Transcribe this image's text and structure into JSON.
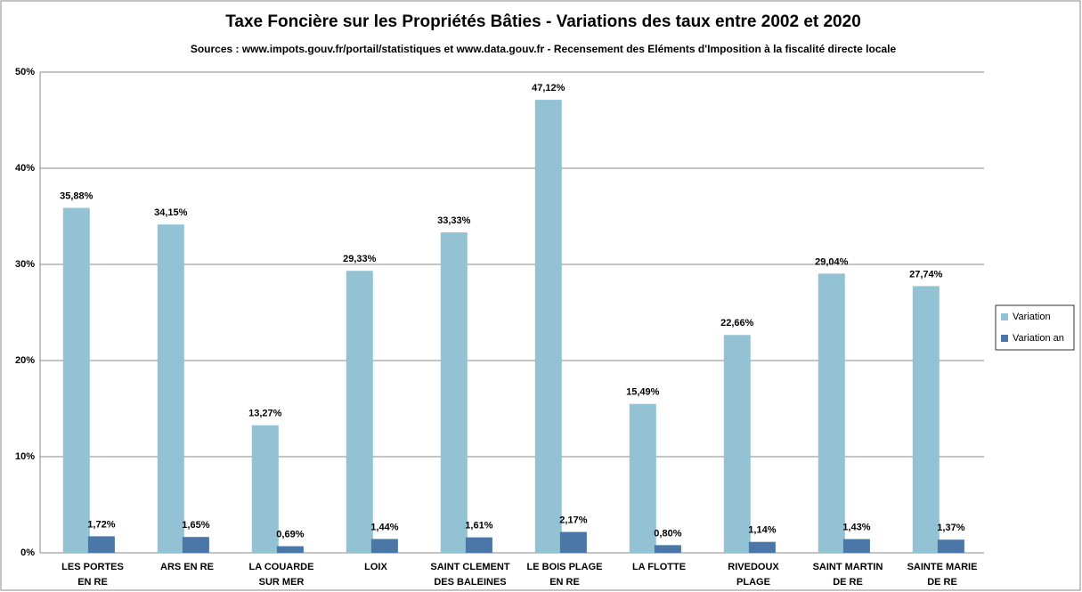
{
  "chart_data": {
    "type": "bar",
    "title": "Taxe Foncière sur les Propriétés Bâties - Variations des taux entre 2002 et 2020",
    "subtitle": "Sources : www.impots.gouv.fr/portail/statistiques et www.data.gouv.fr - Recensement des Eléments d'Imposition à la fiscalité directe locale",
    "categories": [
      "LES PORTES\nEN RE",
      "ARS EN RE",
      "LA COUARDE\nSUR MER",
      "LOIX",
      "SAINT CLEMENT\nDES BALEINES",
      "LE BOIS PLAGE\nEN RE",
      "LA FLOTTE",
      "RIVEDOUX\nPLAGE",
      "SAINT MARTIN\nDE RE",
      "SAINTE MARIE\nDE RE"
    ],
    "series": [
      {
        "name": "Variation",
        "color": "#92c2d4",
        "values": [
          35.88,
          34.15,
          13.27,
          29.33,
          33.33,
          47.12,
          15.49,
          22.66,
          29.04,
          27.74
        ],
        "value_labels": [
          "35,88%",
          "34,15%",
          "13,27%",
          "29,33%",
          "33,33%",
          "47,12%",
          "15,49%",
          "22,66%",
          "29,04%",
          "27,74%"
        ]
      },
      {
        "name": "Variation an",
        "color": "#4a76a8",
        "values": [
          1.72,
          1.65,
          0.69,
          1.44,
          1.61,
          2.17,
          0.8,
          1.14,
          1.43,
          1.37
        ],
        "value_labels": [
          "1,72%",
          "1,65%",
          "0,69%",
          "1,44%",
          "1,61%",
          "2,17%",
          "0,80%",
          "1,14%",
          "1,43%",
          "1,37%"
        ]
      }
    ],
    "ylim": [
      0,
      50
    ],
    "yticks": [
      {
        "value": 0,
        "label": "0%"
      },
      {
        "value": 10,
        "label": "10%"
      },
      {
        "value": 20,
        "label": "20%"
      },
      {
        "value": 30,
        "label": "30%"
      },
      {
        "value": 40,
        "label": "40%"
      },
      {
        "value": 50,
        "label": "50%"
      }
    ],
    "grid": true,
    "legend": "right"
  }
}
